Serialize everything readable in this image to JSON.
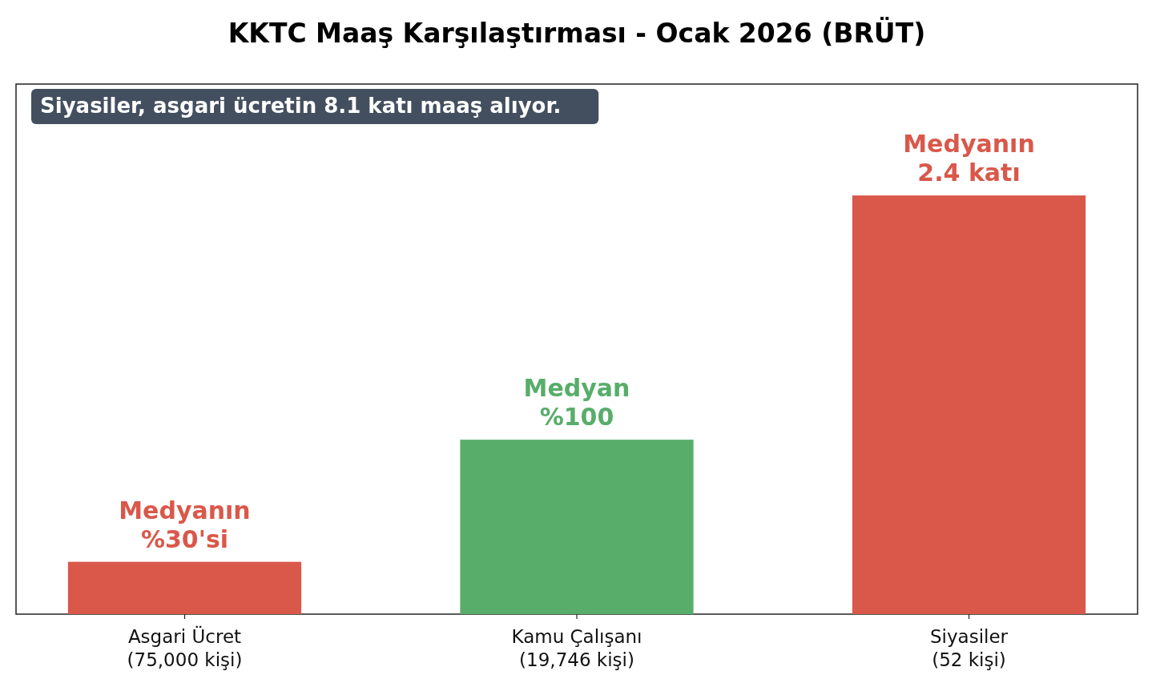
{
  "chart_data": {
    "type": "bar",
    "title": "KKTC Maaş Karşılaştırması - Ocak 2026 (BRÜT)",
    "categories": [
      "Asgari Ücret\n(75,000 kişi)",
      "Kamu Çalışanı\n(19,746 kişi)",
      "Siyasiler\n(52 kişi)"
    ],
    "values": [
      30,
      100,
      240
    ],
    "colors": [
      "#d9584a",
      "#58ad6a",
      "#d9584a"
    ],
    "value_labels": [
      "Medyanın\n%30'si",
      "Medyan\n%100",
      "Medyanın\n2.4 katı"
    ],
    "annotations": [
      "Siyasiler, asgari ücretin 8.1 katı maaş alıyor."
    ]
  }
}
